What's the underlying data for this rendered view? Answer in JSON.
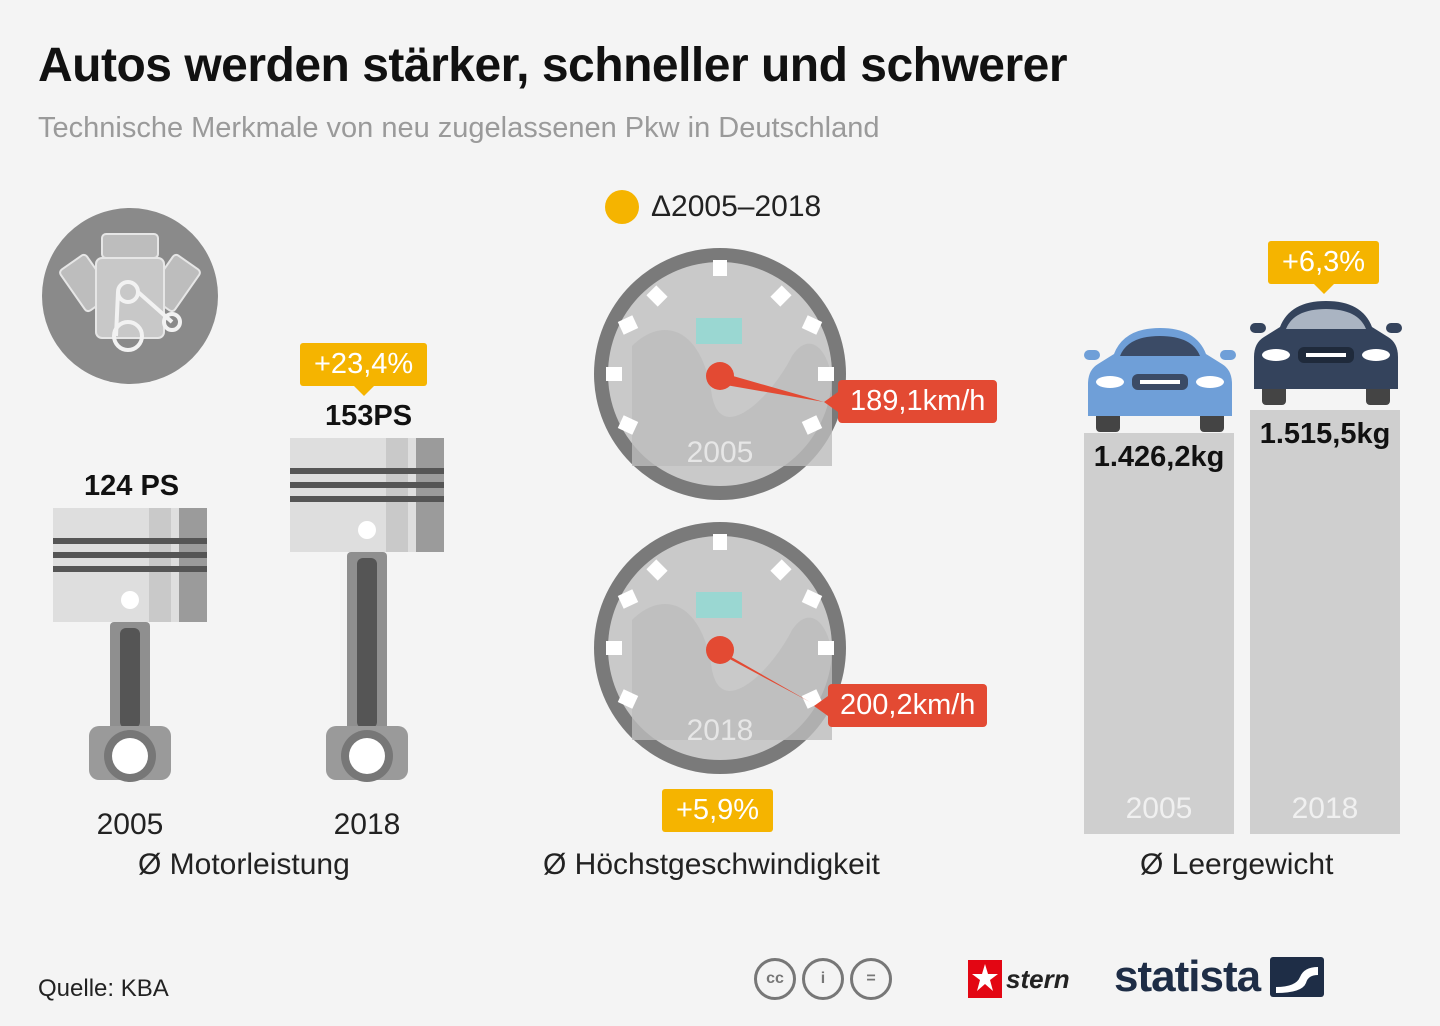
{
  "title": "Autos werden stärker, schneller und schwerer",
  "subtitle": "Technische Merkmale von neu zugelassenen Pkw in Deutschland",
  "legend": {
    "label": "Δ2005–2018",
    "color": "#f5b400"
  },
  "colors": {
    "accent": "#f5b400",
    "speed_label": "#e34a33",
    "bar": "#cfcfcf",
    "gauge": "#8a8a8a"
  },
  "chart_data": [
    {
      "type": "bar",
      "title": "Ø Motorleistung",
      "categories": [
        "2005",
        "2018"
      ],
      "values": [
        124,
        153
      ],
      "unit": "PS",
      "value_labels": [
        "124 PS",
        "153PS"
      ],
      "change": "+23,4%"
    },
    {
      "type": "gauge",
      "title": "Ø Höchstgeschwindigkeit",
      "categories": [
        "2005",
        "2018"
      ],
      "values": [
        189.1,
        200.2
      ],
      "unit": "km/h",
      "value_labels": [
        "189,1km/h",
        "200,2km/h"
      ],
      "change": "+5,9%"
    },
    {
      "type": "bar",
      "title": "Ø Leergewicht",
      "categories": [
        "2005",
        "2018"
      ],
      "values": [
        1426.2,
        1515.5
      ],
      "unit": "kg",
      "value_labels": [
        "1.426,2kg",
        "1.515,5kg"
      ],
      "change": "+6,3%"
    }
  ],
  "footer": {
    "source": "Quelle: KBA",
    "cc_icons": [
      "cc",
      "i",
      "="
    ],
    "stern": "stern",
    "statista": "statista"
  }
}
